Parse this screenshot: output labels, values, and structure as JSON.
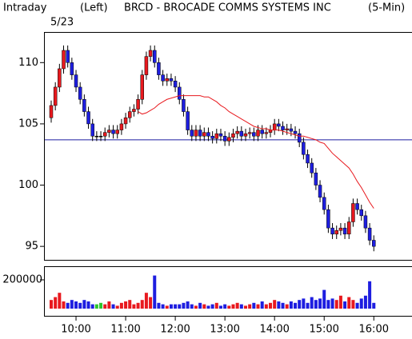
{
  "chart_data": {
    "type": "candlestick",
    "mode": "Intraday",
    "axis_side": "(Left)",
    "title": "BRCD - BROCADE COMMS SYSTEMS INC",
    "interval": "(5-Min)",
    "date": "5/23",
    "categories": [
      null,
      null,
      null,
      null,
      null,
      null,
      "10:00",
      null,
      null,
      null,
      null,
      null,
      null,
      null,
      null,
      null,
      null,
      null,
      "11:00",
      null,
      null,
      null,
      null,
      null,
      null,
      null,
      null,
      null,
      null,
      null,
      "12:00",
      null,
      null,
      null,
      null,
      null,
      null,
      null,
      null,
      null,
      null,
      null,
      "13:00",
      null,
      null,
      null,
      null,
      null,
      null,
      null,
      null,
      null,
      null,
      null,
      "14:00",
      null,
      null,
      null,
      null,
      null,
      null,
      null,
      null,
      null,
      null,
      null,
      "15:00",
      null,
      null,
      null,
      null,
      null,
      null,
      null,
      null,
      null,
      null,
      null,
      "16:00"
    ],
    "open": [
      105.5,
      106.5,
      108,
      109.5,
      111,
      110,
      109,
      108,
      107,
      106,
      105,
      104,
      104,
      104,
      104.3,
      104.5,
      104.2,
      104.5,
      105,
      105.5,
      106,
      106.2,
      107,
      109,
      110.5,
      111,
      110,
      109,
      108.5,
      108.7,
      108.5,
      108,
      107,
      106,
      104.5,
      104,
      104.5,
      104,
      104.3,
      104,
      103.8,
      104.2,
      104,
      103.6,
      103.9,
      104.2,
      104.4,
      104,
      104.2,
      104.3,
      104,
      104.5,
      104.2,
      104.3,
      104.5,
      105,
      104.8,
      104.5,
      104.6,
      104.4,
      104.2,
      103.5,
      102.5,
      101.8,
      101,
      100,
      99,
      98,
      96.5,
      96,
      96.3,
      96.5,
      96,
      97,
      98.5,
      98,
      97.5,
      96.5,
      95.5
    ],
    "high": [
      106.9,
      108.4,
      109.9,
      111.4,
      111.4,
      110.4,
      109.4,
      108.4,
      107.4,
      106.4,
      105.4,
      104.4,
      104.4,
      104.7,
      104.9,
      104.9,
      104.9,
      105.4,
      105.9,
      106.4,
      106.6,
      107.4,
      109.4,
      110.9,
      111.4,
      111.4,
      110.4,
      109.4,
      109.1,
      109.1,
      108.9,
      108.4,
      107.4,
      106.4,
      104.9,
      104.9,
      104.9,
      104.7,
      104.7,
      104.4,
      104.6,
      104.6,
      104.4,
      104.3,
      104.6,
      104.8,
      104.8,
      104.6,
      104.7,
      104.7,
      104.9,
      104.9,
      104.7,
      104.9,
      105.4,
      105.4,
      105.2,
      105,
      105,
      104.8,
      104.6,
      103.9,
      102.9,
      102.2,
      101.4,
      100.4,
      99.4,
      98.4,
      96.9,
      96.7,
      96.9,
      96.9,
      97.4,
      98.9,
      98.9,
      98.4,
      97.9,
      96.9,
      95.9
    ],
    "low": [
      105.1,
      106.1,
      107.6,
      109.1,
      109.6,
      108.6,
      107.6,
      106.6,
      105.6,
      104.6,
      103.6,
      103.6,
      103.6,
      103.6,
      103.9,
      103.8,
      103.8,
      104.1,
      104.6,
      105.1,
      105.6,
      105.8,
      106.6,
      108.6,
      110.1,
      109.6,
      108.6,
      108.1,
      108.1,
      108.1,
      107.6,
      106.6,
      105.6,
      104.1,
      103.6,
      103.6,
      103.6,
      103.6,
      103.6,
      103.4,
      103.4,
      103.6,
      103.2,
      103.2,
      103.5,
      103.8,
      103.6,
      103.6,
      103.8,
      103.6,
      103.6,
      103.8,
      103.8,
      103.9,
      104.1,
      104.4,
      104.1,
      104.1,
      104,
      103.8,
      103.1,
      102.1,
      101.4,
      100.6,
      99.6,
      98.6,
      97.6,
      96.1,
      95.6,
      95.6,
      95.9,
      95.6,
      95.6,
      96.6,
      97.6,
      97.1,
      96.1,
      95.1,
      94.6
    ],
    "close": [
      106.5,
      108,
      109.5,
      111,
      110,
      109,
      108,
      107,
      106,
      105,
      104,
      104,
      104,
      104.3,
      104.5,
      104.2,
      104.5,
      105,
      105.5,
      106,
      106.2,
      107,
      109,
      110.5,
      111,
      110,
      109,
      108.5,
      108.7,
      108.5,
      108,
      107,
      106,
      104.5,
      104,
      104.5,
      104,
      104.3,
      104,
      103.8,
      104.2,
      104,
      103.6,
      103.9,
      104.2,
      104.4,
      104,
      104.2,
      104.3,
      104,
      104.5,
      104.2,
      104.3,
      104.5,
      105,
      104.8,
      104.5,
      104.6,
      104.4,
      104.2,
      103.5,
      102.5,
      101.8,
      101,
      100,
      99,
      98,
      96.5,
      96,
      96.3,
      96.5,
      96,
      97,
      98.5,
      98,
      97.5,
      96.5,
      95.5,
      95
    ],
    "up_color": "#e8191e",
    "down_color": "#1e1ee0",
    "flat_color": "#2ec42e",
    "ylim": [
      93.9,
      112.5
    ],
    "yticks": [
      95,
      100,
      105,
      110
    ],
    "moving_average": {
      "color": "#e8191e",
      "values": [
        null,
        null,
        null,
        null,
        null,
        null,
        null,
        null,
        null,
        null,
        null,
        null,
        null,
        null,
        null,
        null,
        null,
        null,
        null,
        null,
        null,
        106.0,
        105.8,
        105.9,
        106.1,
        106.3,
        106.6,
        106.8,
        107.0,
        107.1,
        107.2,
        107.3,
        107.3,
        107.3,
        107.3,
        107.3,
        107.3,
        107.2,
        107.2,
        107.0,
        106.8,
        106.5,
        106.3,
        106.0,
        105.8,
        105.6,
        105.4,
        105.2,
        105.0,
        104.8,
        104.7,
        104.6,
        104.6,
        104.5,
        104.5,
        104.5,
        104.4,
        104.3,
        104.2,
        104.1,
        104.0,
        104.0,
        103.9,
        103.8,
        103.7,
        103.5,
        103.4,
        103.0,
        102.6,
        102.3,
        102.0,
        101.7,
        101.4,
        100.9,
        100.3,
        99.8,
        99.2,
        98.6,
        98.1
      ]
    },
    "reference_line": {
      "value": 103.7,
      "color": "#1e1ea0"
    },
    "volume": {
      "values": [
        60000,
        80000,
        110000,
        50000,
        40000,
        60000,
        50000,
        40000,
        60000,
        50000,
        30000,
        30000,
        40000,
        30000,
        50000,
        30000,
        20000,
        40000,
        50000,
        60000,
        30000,
        40000,
        60000,
        110000,
        80000,
        230000,
        40000,
        30000,
        20000,
        30000,
        30000,
        30000,
        40000,
        50000,
        30000,
        20000,
        40000,
        30000,
        20000,
        30000,
        40000,
        20000,
        30000,
        20000,
        30000,
        40000,
        30000,
        20000,
        30000,
        40000,
        30000,
        50000,
        30000,
        40000,
        60000,
        50000,
        40000,
        30000,
        50000,
        40000,
        60000,
        70000,
        40000,
        80000,
        60000,
        70000,
        130000,
        60000,
        70000,
        60000,
        90000,
        50000,
        80000,
        60000,
        40000,
        70000,
        90000,
        190000,
        40000
      ],
      "ylim": [
        0,
        250000
      ],
      "yticks": [
        200000
      ]
    }
  }
}
